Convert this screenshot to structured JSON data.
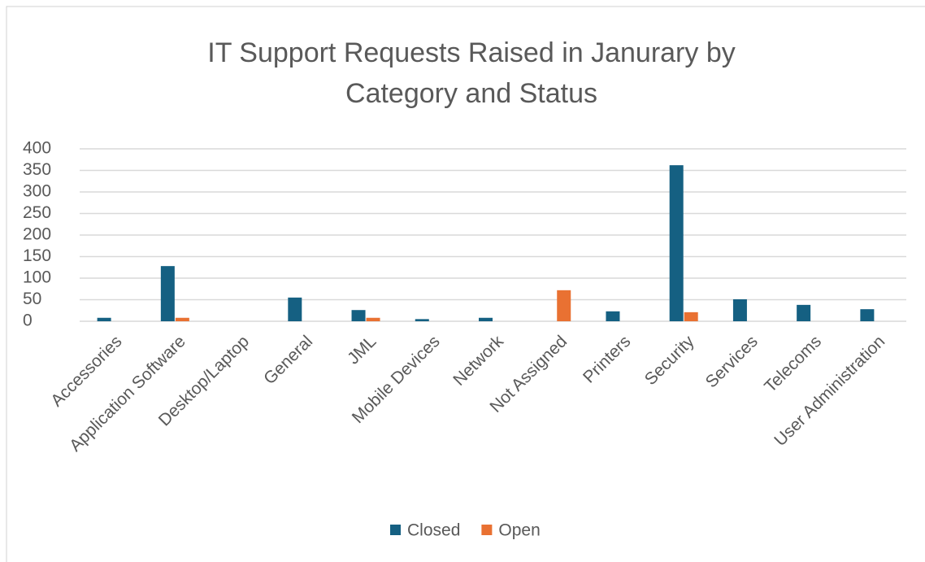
{
  "chart_data": {
    "type": "bar",
    "title": "IT Support Requests Raised in Janurary by Category and Status",
    "categories": [
      "Accessories",
      "Application Software",
      "Desktop/Laptop",
      "General",
      "JML",
      "Mobile Devices",
      "Network",
      "Not Assigned",
      "Printers",
      "Security",
      "Services",
      "Telecoms",
      "User Administration"
    ],
    "series": [
      {
        "name": "Closed",
        "color": "#156082",
        "values": [
          8,
          128,
          0,
          55,
          26,
          5,
          8,
          0,
          23,
          362,
          51,
          38,
          28
        ]
      },
      {
        "name": "Open",
        "color": "#e97132",
        "values": [
          0,
          8,
          0,
          0,
          8,
          0,
          0,
          72,
          0,
          21,
          0,
          0,
          0
        ]
      }
    ],
    "ylim": [
      0,
      400
    ],
    "yticks": [
      0,
      50,
      100,
      150,
      200,
      250,
      300,
      350,
      400
    ],
    "grid": true,
    "legend": "bottom"
  }
}
